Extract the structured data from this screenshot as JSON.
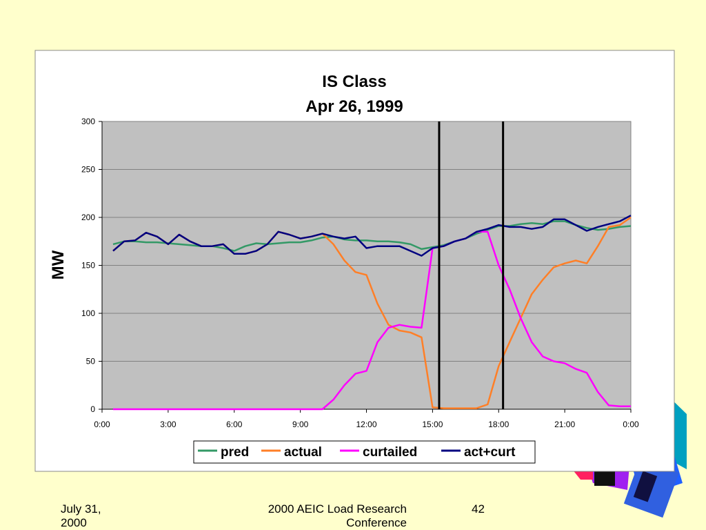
{
  "chart_data": {
    "type": "line",
    "title": "IS Class",
    "subtitle": "Apr 26, 1999",
    "y_label": "MW",
    "x": [
      0.5,
      1,
      1.5,
      2,
      2.5,
      3,
      3.5,
      4,
      4.5,
      5,
      5.5,
      6,
      6.5,
      7,
      7.5,
      8,
      8.5,
      9,
      9.5,
      10,
      10.5,
      11,
      11.5,
      12,
      12.5,
      13,
      13.5,
      14,
      14.5,
      15,
      15.5,
      16,
      16.5,
      17,
      17.5,
      18,
      18.5,
      19,
      19.5,
      20,
      20.5,
      21,
      21.5,
      22,
      22.5,
      23,
      23.5,
      24
    ],
    "series": [
      {
        "name": "pred",
        "color": "#339966",
        "values": [
          172,
          175,
          175,
          174,
          174,
          173,
          172,
          171,
          170,
          170,
          168,
          165,
          170,
          173,
          172,
          173,
          174,
          174,
          176,
          179,
          180,
          177,
          176,
          176,
          175,
          175,
          174,
          172,
          167,
          169,
          171,
          175,
          178,
          183,
          187,
          191,
          191,
          193,
          194,
          193,
          196,
          196,
          192,
          189,
          187,
          188,
          190,
          191
        ]
      },
      {
        "name": "actual",
        "color": "#ff7f27",
        "values": [
          165,
          175,
          176,
          184,
          180,
          172,
          182,
          175,
          170,
          170,
          172,
          162,
          162,
          165,
          172,
          185,
          182,
          178,
          180,
          183,
          172,
          155,
          143,
          140,
          110,
          88,
          82,
          80,
          75,
          2,
          1,
          1,
          1,
          1,
          5,
          45,
          70,
          95,
          120,
          135,
          148,
          152,
          155,
          152,
          170,
          190,
          192,
          200
        ]
      },
      {
        "name": "curtailed",
        "color": "#ff00ff",
        "values": [
          0,
          0,
          0,
          0,
          0,
          0,
          0,
          0,
          0,
          0,
          0,
          0,
          0,
          0,
          0,
          0,
          0,
          0,
          0,
          0,
          10,
          25,
          37,
          40,
          70,
          85,
          88,
          86,
          85,
          168,
          170,
          175,
          178,
          185,
          185,
          150,
          125,
          95,
          70,
          55,
          50,
          48,
          42,
          38,
          18,
          4,
          3,
          3
        ]
      },
      {
        "name": "act+curt",
        "color": "#000080",
        "values": [
          165,
          175,
          176,
          184,
          180,
          172,
          182,
          175,
          170,
          170,
          172,
          162,
          162,
          165,
          172,
          185,
          182,
          178,
          180,
          183,
          180,
          178,
          180,
          168,
          170,
          170,
          170,
          165,
          160,
          168,
          170,
          175,
          178,
          185,
          188,
          192,
          190,
          190,
          188,
          190,
          198,
          198,
          192,
          186,
          190,
          193,
          196,
          202
        ]
      }
    ],
    "vlines": [
      15.3,
      18.2
    ],
    "xlim": [
      0,
      24
    ],
    "xticks": [
      {
        "value": 0,
        "label": "0:00"
      },
      {
        "value": 3,
        "label": "3:00"
      },
      {
        "value": 6,
        "label": "6:00"
      },
      {
        "value": 9,
        "label": "9:00"
      },
      {
        "value": 12,
        "label": "12:00"
      },
      {
        "value": 15,
        "label": "15:00"
      },
      {
        "value": 18,
        "label": "18:00"
      },
      {
        "value": 21,
        "label": "21:00"
      },
      {
        "value": 24,
        "label": "0:00"
      }
    ],
    "ylim": [
      0,
      300
    ],
    "yticks": [
      0,
      50,
      100,
      150,
      200,
      250,
      300
    ],
    "grid": true,
    "legend": "bottom"
  },
  "footer": {
    "date": "July 31, 2000",
    "event": "2000 AEIC Load Research Conference",
    "page": "42"
  }
}
